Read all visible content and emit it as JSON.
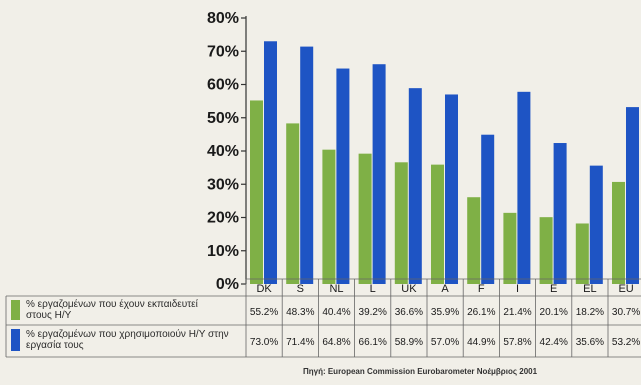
{
  "colors": {
    "series1": "#7fb046",
    "series2": "#1e54c4",
    "background": "#f1efe8",
    "table_border": "#666666"
  },
  "source": "Πηγή: European Commission Eurobarometer Νοέμβριος 2001",
  "chart_data": {
    "type": "bar",
    "categories": [
      "DK",
      "S",
      "NL",
      "L",
      "UK",
      "A",
      "F",
      "I",
      "E",
      "EL",
      "EU"
    ],
    "ylim": [
      0,
      80
    ],
    "yticks": [
      "0%",
      "10%",
      "20%",
      "30%",
      "40%",
      "50%",
      "60%",
      "70%",
      "80%"
    ],
    "grid": false,
    "legend": "table-below",
    "series": [
      {
        "name": "% εργαζομένων που έχουν εκπαιδευτεί στους Η/Υ",
        "values": [
          55.2,
          48.3,
          40.4,
          39.2,
          36.6,
          35.9,
          26.1,
          21.4,
          20.1,
          18.2,
          30.7
        ],
        "labels": [
          "55.2%",
          "48.3%",
          "40.4%",
          "39.2%",
          "36.6%",
          "35.9%",
          "26.1%",
          "21.4%",
          "20.1%",
          "18.2%",
          "30.7%"
        ]
      },
      {
        "name": "% εργαζομένων που χρησιμοποιούν Η/Υ στην εργασία τους",
        "values": [
          73.0,
          71.4,
          64.8,
          66.1,
          58.9,
          57.0,
          44.9,
          57.8,
          42.4,
          35.6,
          53.2
        ],
        "labels": [
          "73.0%",
          "71.4%",
          "64.8%",
          "66.1%",
          "58.9%",
          "57.0%",
          "44.9%",
          "57.8%",
          "42.4%",
          "35.6%",
          "53.2%"
        ]
      }
    ]
  }
}
